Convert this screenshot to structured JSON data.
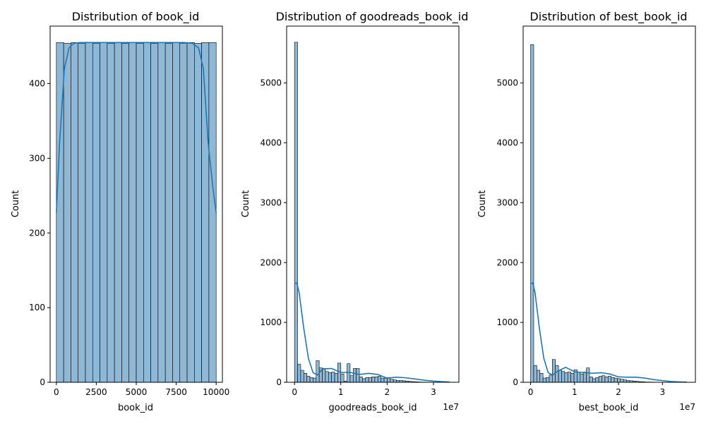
{
  "figure": {
    "background": "#ffffff"
  },
  "chart_data": [
    {
      "type": "bar",
      "subtype": "histogram_with_kde",
      "title": "Distribution of book_id",
      "xlabel": "book_id",
      "ylabel": "Count",
      "xlim": [
        -390,
        10390
      ],
      "ylim": [
        0,
        477
      ],
      "x_ticks": [
        0,
        1000,
        2000,
        3000,
        4000,
        5000,
        6000,
        7000,
        8000,
        9000,
        10000
      ],
      "x_tick_labels": [
        "0",
        "2500",
        "5000",
        "7500",
        "10000"
      ],
      "x_tick_values": [
        0,
        2500,
        5000,
        7500,
        10000
      ],
      "y_tick_values": [
        0,
        100,
        200,
        300,
        400
      ],
      "y_tick_labels": [
        "0",
        "100",
        "200",
        "300",
        "400"
      ],
      "x_offset_label": "",
      "bin_edges": [
        1,
        456,
        910,
        1365,
        1819,
        2274,
        2728,
        3183,
        3637,
        4092,
        4546,
        5001,
        5455,
        5910,
        6364,
        6819,
        7273,
        7728,
        8182,
        8637,
        9091,
        9546,
        10000
      ],
      "counts": [
        455,
        454,
        455,
        454,
        455,
        454,
        455,
        454,
        455,
        454,
        455,
        454,
        455,
        454,
        455,
        454,
        455,
        454,
        455,
        454,
        455,
        455
      ],
      "kde": {
        "x": [
          1,
          200,
          500,
          800,
          1100,
          1500,
          2000,
          3000,
          5000,
          7000,
          8000,
          8500,
          8900,
          9200,
          9500,
          9800,
          10000
        ],
        "y": [
          227,
          320,
          420,
          448,
          454,
          455,
          455,
          455,
          455,
          455,
          455,
          454,
          448,
          420,
          320,
          260,
          227
        ]
      },
      "bar_fill": "#8fb8d6",
      "bar_edge": "#000000",
      "kde_color": "#1f77b4",
      "grid": false
    },
    {
      "type": "bar",
      "subtype": "histogram_with_kde",
      "title": "Distribution of goodreads_book_id",
      "xlabel": "goodreads_book_id",
      "ylabel": "Count",
      "x_offset_label": "1e7",
      "xlim": [
        -0.17,
        3.55
      ],
      "ylim": [
        0,
        5950
      ],
      "x_tick_values": [
        0,
        1,
        2,
        3
      ],
      "x_tick_labels": [
        "0",
        "1",
        "2",
        "3"
      ],
      "y_tick_values": [
        0,
        1000,
        2000,
        3000,
        4000,
        5000
      ],
      "y_tick_labels": [
        "0",
        "1000",
        "2000",
        "3000",
        "4000",
        "5000"
      ],
      "bin_width": 0.0667,
      "bin_start": 0.0,
      "counts": [
        5680,
        300,
        200,
        150,
        100,
        80,
        70,
        360,
        240,
        230,
        180,
        160,
        170,
        150,
        320,
        140,
        20,
        310,
        110,
        230,
        230,
        90,
        60,
        80,
        80,
        90,
        90,
        100,
        70,
        70,
        80,
        50,
        40,
        30,
        30,
        25,
        20,
        15,
        10,
        8,
        5,
        3,
        3,
        2,
        1,
        1,
        1,
        1,
        1,
        1
      ],
      "kde": {
        "x": [
          0,
          0.05,
          0.1,
          0.2,
          0.3,
          0.4,
          0.5,
          0.6,
          0.8,
          1.0,
          1.2,
          1.4,
          1.6,
          1.8,
          2.0,
          2.2,
          2.4,
          2.6,
          2.8,
          3.0,
          3.2,
          3.35
        ],
        "y": [
          1650,
          1660,
          1500,
          900,
          400,
          160,
          120,
          220,
          230,
          165,
          165,
          130,
          150,
          130,
          70,
          85,
          75,
          55,
          35,
          20,
          10,
          5
        ]
      },
      "bar_fill": "#8fb8d6",
      "bar_edge": "#000000",
      "kde_color": "#1f77b4",
      "grid": false
    },
    {
      "type": "bar",
      "subtype": "histogram_with_kde",
      "title": "Distribution of best_book_id",
      "xlabel": "best_book_id",
      "ylabel": "Count",
      "x_offset_label": "1e7",
      "xlim": [
        -0.17,
        3.75
      ],
      "ylim": [
        0,
        5950
      ],
      "x_tick_values": [
        0,
        1,
        2,
        3
      ],
      "x_tick_labels": [
        "0",
        "1",
        "2",
        "3"
      ],
      "y_tick_values": [
        0,
        1000,
        2000,
        3000,
        4000,
        5000
      ],
      "y_tick_labels": [
        "0",
        "1000",
        "2000",
        "3000",
        "4000",
        "5000"
      ],
      "bin_width": 0.0705,
      "bin_start": 0.0,
      "counts": [
        5640,
        280,
        200,
        150,
        70,
        80,
        120,
        380,
        280,
        200,
        180,
        160,
        170,
        150,
        210,
        170,
        140,
        170,
        240,
        90,
        60,
        80,
        100,
        110,
        90,
        100,
        80,
        70,
        60,
        50,
        40,
        30,
        25,
        20,
        15,
        10,
        8,
        5,
        4,
        3,
        2,
        2,
        1,
        1,
        1,
        1,
        1,
        1,
        1,
        1
      ],
      "kde": {
        "x": [
          0,
          0.05,
          0.1,
          0.2,
          0.3,
          0.4,
          0.5,
          0.6,
          0.8,
          1.0,
          1.2,
          1.4,
          1.6,
          1.8,
          2.0,
          2.2,
          2.4,
          2.6,
          2.8,
          3.0,
          3.2,
          3.4,
          3.55
        ],
        "y": [
          1650,
          1660,
          1500,
          900,
          400,
          160,
          120,
          180,
          250,
          175,
          165,
          150,
          160,
          140,
          90,
          85,
          85,
          70,
          45,
          28,
          12,
          5,
          2
        ]
      },
      "bar_fill": "#8fb8d6",
      "bar_edge": "#000000",
      "kde_color": "#1f77b4",
      "grid": false
    }
  ]
}
